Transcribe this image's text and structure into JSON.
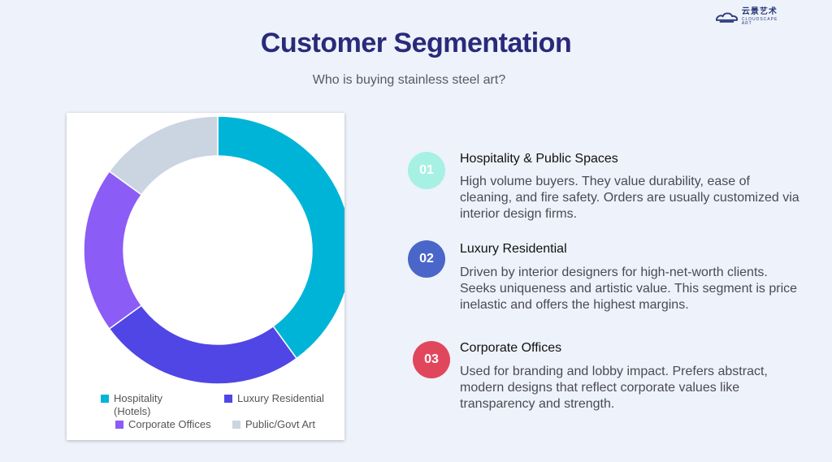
{
  "logo": {
    "text_cn": "云景艺术",
    "text_en": "CLOUDSCAPE ART",
    "icon": "cloud-logo-icon"
  },
  "title": "Customer Segmentation",
  "subtitle": "Who is buying stainless steel art?",
  "chart_data": {
    "type": "pie",
    "style": "donut",
    "categories": [
      "Hospitality (Hotels)",
      "Luxury Residential",
      "Corporate Offices",
      "Public/Govt Art"
    ],
    "values": [
      40,
      25,
      20,
      15
    ],
    "colors": [
      "#00b4d8",
      "#4f46e5",
      "#8b5cf6",
      "#cbd5e1"
    ],
    "legend_placement": "bottom"
  },
  "legend": {
    "items": [
      {
        "label": "Hospitality (Hotels)",
        "color": "#00b4d8"
      },
      {
        "label": "Luxury Residential",
        "color": "#4f46e5"
      },
      {
        "label": "Corporate Offices",
        "color": "#8b5cf6"
      },
      {
        "label": "Public/Govt Art",
        "color": "#cbd5e1"
      }
    ]
  },
  "segments": [
    {
      "number": "01",
      "title": "Hospitality & Public Spaces",
      "description": "High volume buyers. They value durability, ease of cleaning, and fire safety. Orders are usually customized via interior design firms.",
      "badge_bg": "#a7f0e4",
      "badge_fg": "#ffffff"
    },
    {
      "number": "02",
      "title": "Luxury Residential",
      "description": "Driven by interior designers for high-net-worth clients. Seeks uniqueness and artistic value. This segment is price inelastic and offers the highest margins.",
      "badge_bg": "#4a66c9",
      "badge_fg": "#ffffff"
    },
    {
      "number": "03",
      "title": "Corporate Offices",
      "description": "Used for branding and lobby impact. Prefers abstract, modern designs that reflect corporate values like transparency and strength.",
      "badge_bg": "#e0475c",
      "badge_fg": "#ffffff"
    }
  ]
}
